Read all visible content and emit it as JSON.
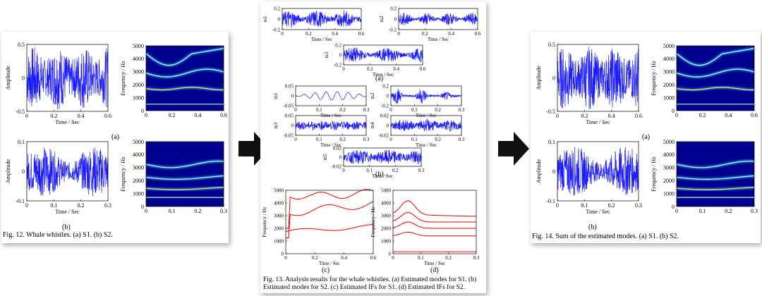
{
  "fig12": {
    "caption": "Fig. 12. Whale whistles. (a) S1. (b) S2.",
    "label_a": "(a)",
    "label_b": "(b)",
    "top_left": {
      "ylabel": "Amplitude",
      "xlabel": "Time / Sec",
      "yticks": [
        "0.5",
        "0",
        "-0.5"
      ],
      "xticks": [
        "0",
        "0.2",
        "0.4",
        "0.6"
      ]
    },
    "top_right": {
      "ylabel": "Frequency / Hz",
      "yticks": [
        "5000",
        "4000",
        "3000",
        "2000",
        "1000",
        "0"
      ],
      "xticks": [
        "0",
        "0.2",
        "0.4",
        "0.6"
      ]
    },
    "bottom_left": {
      "ylabel": "Amplitude",
      "xlabel": "Time / Sec",
      "yticks": [
        "0.1",
        "0",
        "-0.1"
      ],
      "xticks": [
        "0",
        "0.1",
        "0.2",
        "0.3"
      ]
    },
    "bottom_right": {
      "ylabel": "Frequency / Hz",
      "yticks": [
        "5000",
        "4000",
        "3000",
        "2000",
        "1000",
        "0"
      ],
      "xticks": [
        "0",
        "0.1",
        "0.2",
        "0.3"
      ]
    }
  },
  "fig13": {
    "caption_line1": "Fig. 13. Analysis results for the whale whistles. (a) Estimated modes for S1. (b)",
    "caption_line2": "Estimated modes for S2. (c) Estimated IFs for S1. (d) Estimated IFs for S2.",
    "label_a": "(a)",
    "label_b": "(b)",
    "label_c": "(c)",
    "label_d": "(d)",
    "xlabel": "Time / Sec",
    "a_m1": {
      "ylabel": "m1",
      "yticks": [
        "0.2",
        "0",
        "-0.2"
      ],
      "xticks": [
        "0",
        "0.2",
        "0.4",
        "0.6"
      ]
    },
    "a_m2": {
      "ylabel": "m2",
      "yticks": [
        "0.2",
        "0",
        "-0.2"
      ],
      "xticks": [
        "0",
        "0.2",
        "0.4",
        "0.6"
      ]
    },
    "a_m3": {
      "ylabel": "m3",
      "yticks": [
        "0.2",
        "0",
        "-0.2"
      ],
      "xticks": [
        "0",
        "0.2",
        "0.4",
        "0.6"
      ]
    },
    "b_m1": {
      "ylabel": "m1",
      "yticks": [
        "0.05",
        "0",
        "-0.05"
      ],
      "xticks": [
        "0",
        "0.1",
        "0.2",
        "0.3"
      ]
    },
    "b_m2": {
      "ylabel": "m2",
      "yticks": [
        "0.2",
        "0",
        "-0.2"
      ],
      "xticks": [
        "0",
        "0.1",
        "0.2",
        "0.3"
      ]
    },
    "b_m3": {
      "ylabel": "m3",
      "yticks": [
        "0.05",
        "0",
        "-0.05"
      ],
      "xticks": [
        "0",
        "0.1",
        "0.2",
        "0.3"
      ]
    },
    "b_m4": {
      "ylabel": "m4",
      "yticks": [
        "0.02",
        "0",
        "-0.02"
      ],
      "xticks": [
        "0",
        "0.1",
        "0.2",
        "0.3"
      ]
    },
    "b_m5": {
      "ylabel": "m5",
      "yticks": [
        "0.02",
        "0",
        "-0.02"
      ],
      "xticks": [
        "0",
        "0.1",
        "0.2",
        "0.3"
      ]
    },
    "c": {
      "ylabel": "Frequency / Hz",
      "yticks": [
        "5000",
        "4000",
        "3000",
        "2000",
        "1000",
        "0"
      ],
      "xticks": [
        "0",
        "0.2",
        "0.4",
        "0.6"
      ]
    },
    "d": {
      "ylabel": "Frequency / Hz",
      "yticks": [
        "5000",
        "4000",
        "3000",
        "2000",
        "1000",
        "0"
      ],
      "xticks": [
        "0",
        "0.1",
        "0.2",
        "0.3"
      ]
    }
  },
  "fig14": {
    "caption": "Fig. 14. Sum of the estimated modes. (a) S1. (b) S2.",
    "label_a": "(a)",
    "label_b": "(b)",
    "top_left": {
      "ylabel": "Amplitude",
      "xlabel": "Time / Sec",
      "yticks": [
        "0.5",
        "0",
        "-0.5"
      ],
      "xticks": [
        "0",
        "0.2",
        "0.4",
        "0.6"
      ]
    },
    "top_right": {
      "ylabel": "Frequency / Hz",
      "yticks": [
        "5000",
        "4000",
        "3000",
        "2000",
        "1000",
        "0"
      ],
      "xticks": [
        "0",
        "0.2",
        "0.4",
        "0.6"
      ]
    },
    "bottom_left": {
      "ylabel": "Amplitude",
      "xlabel": "Time / Sec",
      "yticks": [
        "0.1",
        "0",
        "-0.1"
      ],
      "xticks": [
        "0",
        "0.1",
        "0.2",
        "0.3"
      ]
    },
    "bottom_right": {
      "ylabel": "Frequency / Hz",
      "yticks": [
        "5000",
        "4000",
        "3000",
        "2000",
        "1000",
        "0"
      ],
      "xticks": [
        "0",
        "0.1",
        "0.2",
        "0.3"
      ]
    }
  },
  "colors": {
    "waveform": "#1a1aff",
    "spectrogram_bg": "#00008f",
    "if_curve": "#e60000",
    "arrow": "#111111"
  },
  "icons": {
    "arrow": "right-arrow-icon"
  }
}
